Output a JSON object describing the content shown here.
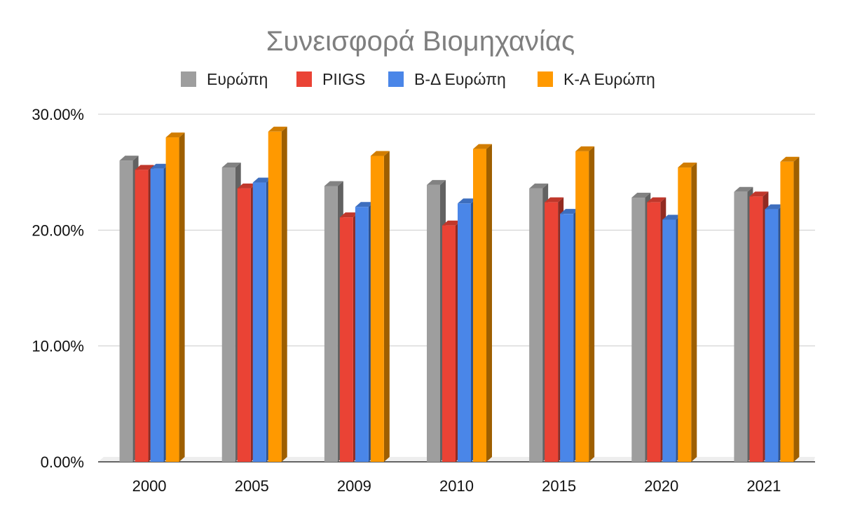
{
  "chart_data": {
    "type": "bar",
    "title": "Συνεισφορά Βιομηχανίας",
    "xlabel": "",
    "ylabel": "",
    "categories": [
      "2000",
      "2005",
      "2009",
      "2010",
      "2015",
      "2020",
      "2021"
    ],
    "series": [
      {
        "name": "Ευρώπη",
        "color": "#9e9e9e",
        "values": [
          26.0,
          25.4,
          23.8,
          23.9,
          23.6,
          22.8,
          23.3
        ]
      },
      {
        "name": "PIIGS",
        "color": "#ea4335",
        "values": [
          25.2,
          23.6,
          21.1,
          20.4,
          22.4,
          22.4,
          22.9
        ]
      },
      {
        "name": "Β-Δ Ευρώπη",
        "color": "#4a86e8",
        "values": [
          25.3,
          24.1,
          22.0,
          22.3,
          21.4,
          20.9,
          21.8
        ]
      },
      {
        "name": "Κ-Α Ευρώπη",
        "color": "#ff9900",
        "values": [
          28.0,
          28.5,
          26.4,
          27.0,
          26.8,
          25.4,
          25.9
        ]
      }
    ],
    "ylim": [
      0,
      30
    ],
    "yticks": [
      {
        "value": 0,
        "label": "0.00%"
      },
      {
        "value": 10,
        "label": "10.00%"
      },
      {
        "value": 20,
        "label": "20.00%"
      },
      {
        "value": 30,
        "label": "30.00%"
      }
    ],
    "grid": true,
    "legend_position": "top-center",
    "style": "3d-bar"
  }
}
